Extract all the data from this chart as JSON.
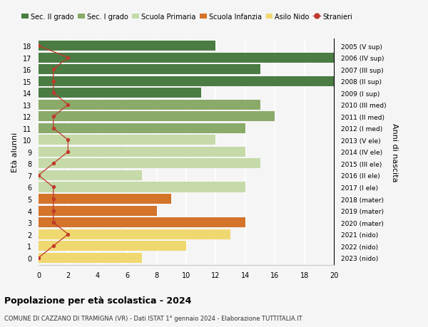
{
  "ages": [
    18,
    17,
    16,
    15,
    14,
    13,
    12,
    11,
    10,
    9,
    8,
    7,
    6,
    5,
    4,
    3,
    2,
    1,
    0
  ],
  "labels_right": [
    "2005 (V sup)",
    "2006 (IV sup)",
    "2007 (III sup)",
    "2008 (II sup)",
    "2009 (I sup)",
    "2010 (III med)",
    "2011 (II med)",
    "2012 (I med)",
    "2013 (V ele)",
    "2014 (IV ele)",
    "2015 (III ele)",
    "2016 (II ele)",
    "2017 (I ele)",
    "2018 (mater)",
    "2019 (mater)",
    "2020 (mater)",
    "2021 (nido)",
    "2022 (nido)",
    "2023 (nido)"
  ],
  "bar_values": [
    12,
    20,
    15,
    20,
    11,
    15,
    16,
    14,
    12,
    14,
    15,
    7,
    14,
    9,
    8,
    14,
    13,
    10,
    7
  ],
  "bar_colors": [
    "#4a7c44",
    "#4a7c44",
    "#4a7c44",
    "#4a7c44",
    "#4a7c44",
    "#8aaa6a",
    "#8aaa6a",
    "#8aaa6a",
    "#c5daa8",
    "#c5daa8",
    "#c5daa8",
    "#c5daa8",
    "#c5daa8",
    "#d4732a",
    "#d4732a",
    "#d4732a",
    "#f0d870",
    "#f0d870",
    "#f0d870"
  ],
  "stranieri_values": [
    0,
    2,
    1,
    1,
    1,
    2,
    1,
    1,
    2,
    2,
    1,
    0,
    1,
    1,
    1,
    1,
    2,
    1,
    0
  ],
  "ylabel_left": "Età alunni",
  "ylabel_right": "Anni di nascita",
  "xlim": [
    0,
    20
  ],
  "xticks": [
    0,
    2,
    4,
    6,
    8,
    10,
    12,
    14,
    16,
    18,
    20
  ],
  "title": "Popolazione per età scolastica - 2024",
  "subtitle": "COMUNE DI CAZZANO DI TRAMIGNA (VR) - Dati ISTAT 1° gennaio 2024 - Elaborazione TUTTITALIA.IT",
  "legend_labels": [
    "Sec. II grado",
    "Sec. I grado",
    "Scuola Primaria",
    "Scuola Infanzia",
    "Asilo Nido",
    "Stranieri"
  ],
  "legend_colors": [
    "#4a7c44",
    "#8aaa6a",
    "#c5daa8",
    "#d4732a",
    "#f0d870",
    "#c0392b"
  ],
  "stranieri_color": "#c0392b",
  "bg_color": "#f5f5f5",
  "bar_height": 0.85
}
